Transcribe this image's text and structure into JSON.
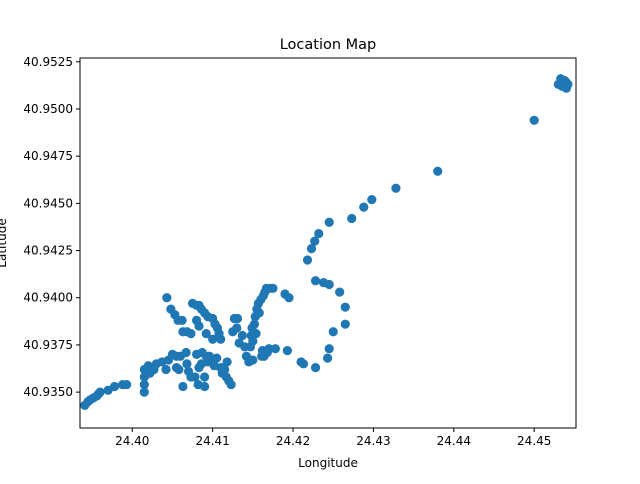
{
  "chart_data": {
    "type": "scatter",
    "title": "Location Map",
    "xlabel": "Longitude",
    "ylabel": "Latitude",
    "xlim": [
      24.3935,
      24.4552
    ],
    "ylim": [
      40.9331,
      40.9527
    ],
    "xticks": [
      24.4,
      24.41,
      24.42,
      24.43,
      24.44,
      24.45
    ],
    "xtick_labels": [
      "24.40",
      "24.41",
      "24.42",
      "24.43",
      "24.44",
      "24.45"
    ],
    "yticks": [
      40.935,
      40.9375,
      40.94,
      40.9425,
      40.945,
      40.9475,
      40.95,
      40.9525
    ],
    "ytick_labels": [
      "40.9350",
      "40.9375",
      "40.9400",
      "40.9425",
      "40.9450",
      "40.9475",
      "40.9500",
      "40.9525"
    ],
    "grid": false,
    "marker_color": "#1f77b4",
    "points": [
      [
        24.3941,
        40.9343
      ],
      [
        24.3945,
        40.9345
      ],
      [
        24.3948,
        40.9346
      ],
      [
        24.3952,
        40.9347
      ],
      [
        24.3956,
        40.9348
      ],
      [
        24.3958,
        40.9349
      ],
      [
        24.396,
        40.935
      ],
      [
        24.397,
        40.9351
      ],
      [
        24.3978,
        40.9353
      ],
      [
        24.3988,
        40.9354
      ],
      [
        24.3993,
        40.9354
      ],
      [
        24.4015,
        40.935
      ],
      [
        24.4015,
        40.9354
      ],
      [
        24.4015,
        40.9358
      ],
      [
        24.4015,
        40.9362
      ],
      [
        24.402,
        40.9364
      ],
      [
        24.4022,
        40.936
      ],
      [
        24.4027,
        40.9362
      ],
      [
        24.403,
        40.9365
      ],
      [
        24.4037,
        40.9366
      ],
      [
        24.4042,
        40.9362
      ],
      [
        24.4045,
        40.9367
      ],
      [
        24.405,
        40.937
      ],
      [
        24.4055,
        40.9369
      ],
      [
        24.4055,
        40.9363
      ],
      [
        24.4058,
        40.9362
      ],
      [
        24.406,
        40.9369
      ],
      [
        24.4063,
        40.9353
      ],
      [
        24.4067,
        40.9371
      ],
      [
        24.4068,
        40.9365
      ],
      [
        24.407,
        40.9361
      ],
      [
        24.4073,
        40.9358
      ],
      [
        24.4078,
        40.9358
      ],
      [
        24.408,
        40.937
      ],
      [
        24.4082,
        40.9354
      ],
      [
        24.4083,
        40.9363
      ],
      [
        24.4086,
        40.9365
      ],
      [
        24.4087,
        40.9371
      ],
      [
        24.409,
        40.9353
      ],
      [
        24.409,
        40.9358
      ],
      [
        24.4092,
        40.9369
      ],
      [
        24.4094,
        40.9366
      ],
      [
        24.4096,
        40.9369
      ],
      [
        24.41,
        40.9367
      ],
      [
        24.4102,
        40.9364
      ],
      [
        24.4105,
        40.9368
      ],
      [
        24.411,
        40.9363
      ],
      [
        24.4112,
        40.936
      ],
      [
        24.4115,
        40.9362
      ],
      [
        24.4117,
        40.9358
      ],
      [
        24.4118,
        40.9366
      ],
      [
        24.412,
        40.9356
      ],
      [
        24.4123,
        40.9354
      ],
      [
        24.4125,
        40.9382
      ],
      [
        24.4127,
        40.9389
      ],
      [
        24.413,
        40.9384
      ],
      [
        24.4131,
        40.9389
      ],
      [
        24.4133,
        40.9376
      ],
      [
        24.4137,
        40.938
      ],
      [
        24.414,
        40.9374
      ],
      [
        24.4142,
        40.9369
      ],
      [
        24.4145,
        40.9366
      ],
      [
        24.4147,
        40.9374
      ],
      [
        24.4148,
        40.938
      ],
      [
        24.4149,
        40.9384
      ],
      [
        24.415,
        40.9367
      ],
      [
        24.415,
        40.9377
      ],
      [
        24.4152,
        40.9386
      ],
      [
        24.4153,
        40.939
      ],
      [
        24.4154,
        40.9381
      ],
      [
        24.4155,
        40.9394
      ],
      [
        24.4157,
        40.9397
      ],
      [
        24.4158,
        40.9392
      ],
      [
        24.416,
        40.9399
      ],
      [
        24.4161,
        40.9369
      ],
      [
        24.4162,
        40.9372
      ],
      [
        24.4163,
        40.9401
      ],
      [
        24.4164,
        40.9369
      ],
      [
        24.4165,
        40.9403
      ],
      [
        24.4167,
        40.9405
      ],
      [
        24.4168,
        40.9371
      ],
      [
        24.417,
        40.9373
      ],
      [
        24.4172,
        40.9405
      ],
      [
        24.4175,
        40.9405
      ],
      [
        24.4178,
        40.9373
      ],
      [
        24.419,
        40.9402
      ],
      [
        24.4195,
        40.94
      ],
      [
        24.4193,
        40.9372
      ],
      [
        24.421,
        40.9366
      ],
      [
        24.4213,
        40.9365
      ],
      [
        24.4228,
        40.9363
      ],
      [
        24.4243,
        40.9368
      ],
      [
        24.4245,
        40.9373
      ],
      [
        24.425,
        40.9382
      ],
      [
        24.4265,
        40.9386
      ],
      [
        24.4265,
        40.9395
      ],
      [
        24.4258,
        40.9403
      ],
      [
        24.4245,
        40.9407
      ],
      [
        24.4238,
        40.9408
      ],
      [
        24.4228,
        40.9409
      ],
      [
        24.4218,
        40.942
      ],
      [
        24.4223,
        40.9426
      ],
      [
        24.4227,
        40.943
      ],
      [
        24.4232,
        40.9434
      ],
      [
        24.4245,
        40.944
      ],
      [
        24.4273,
        40.9442
      ],
      [
        24.4288,
        40.9448
      ],
      [
        24.4298,
        40.9452
      ],
      [
        24.4328,
        40.9458
      ],
      [
        24.438,
        40.9467
      ],
      [
        24.45,
        40.9494
      ],
      [
        24.453,
        40.9513
      ],
      [
        24.4533,
        40.9516
      ],
      [
        24.4535,
        40.9512
      ],
      [
        24.4538,
        40.9515
      ],
      [
        24.454,
        40.9511
      ],
      [
        24.454,
        40.9514
      ],
      [
        24.4542,
        40.9513
      ],
      [
        24.4043,
        40.94
      ],
      [
        24.4048,
        40.9394
      ],
      [
        24.4053,
        40.9391
      ],
      [
        24.4057,
        40.9388
      ],
      [
        24.4062,
        40.9388
      ],
      [
        24.4063,
        40.9382
      ],
      [
        24.4068,
        40.9382
      ],
      [
        24.4073,
        40.9381
      ],
      [
        24.4075,
        40.9397
      ],
      [
        24.408,
        40.9396
      ],
      [
        24.4083,
        40.9396
      ],
      [
        24.4086,
        40.9394
      ],
      [
        24.409,
        40.9392
      ],
      [
        24.4092,
        40.9381
      ],
      [
        24.4094,
        40.939
      ],
      [
        24.41,
        40.9389
      ],
      [
        24.41,
        40.9378
      ],
      [
        24.4103,
        40.9386
      ],
      [
        24.4106,
        40.9384
      ],
      [
        24.4108,
        40.9381
      ],
      [
        24.411,
        40.9378
      ],
      [
        24.408,
        40.9388
      ],
      [
        24.4083,
        40.9385
      ]
    ]
  }
}
